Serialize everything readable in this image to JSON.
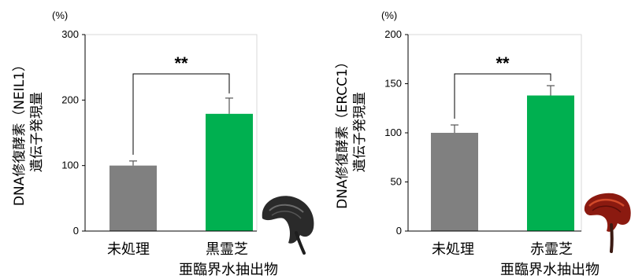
{
  "chart_data": [
    {
      "type": "bar",
      "ylabel_line1": "DNA修復酵素（NEIL1）",
      "ylabel_line2": "遺伝子発現量",
      "unit": "(%)",
      "ylim": [
        0,
        300
      ],
      "yticks": [
        "0",
        "100",
        "200",
        "300"
      ],
      "categories": [
        "未処理",
        "黒霊芝"
      ],
      "category_sublabel": "亜臨界水抽出物",
      "values": [
        100,
        179
      ],
      "errors": [
        7,
        24
      ],
      "bar_colors": [
        "#808080",
        "#00b050"
      ],
      "significance": "**",
      "grid": false
    },
    {
      "type": "bar",
      "ylabel_line1": "DNA修復酵素（ERCC1）",
      "ylabel_line2": "遺伝子発現量",
      "unit": "(%)",
      "ylim": [
        0,
        200
      ],
      "yticks": [
        "0",
        "50",
        "100",
        "150",
        "200"
      ],
      "categories": [
        "未処理",
        "赤霊芝"
      ],
      "category_sublabel": "亜臨界水抽出物",
      "values": [
        100,
        138
      ],
      "errors": [
        8,
        10
      ],
      "bar_colors": [
        "#808080",
        "#00b050"
      ],
      "significance": "**",
      "grid": false
    }
  ],
  "images": {
    "left_mushroom": "black-reishi-photo",
    "right_mushroom": "red-reishi-photo"
  }
}
